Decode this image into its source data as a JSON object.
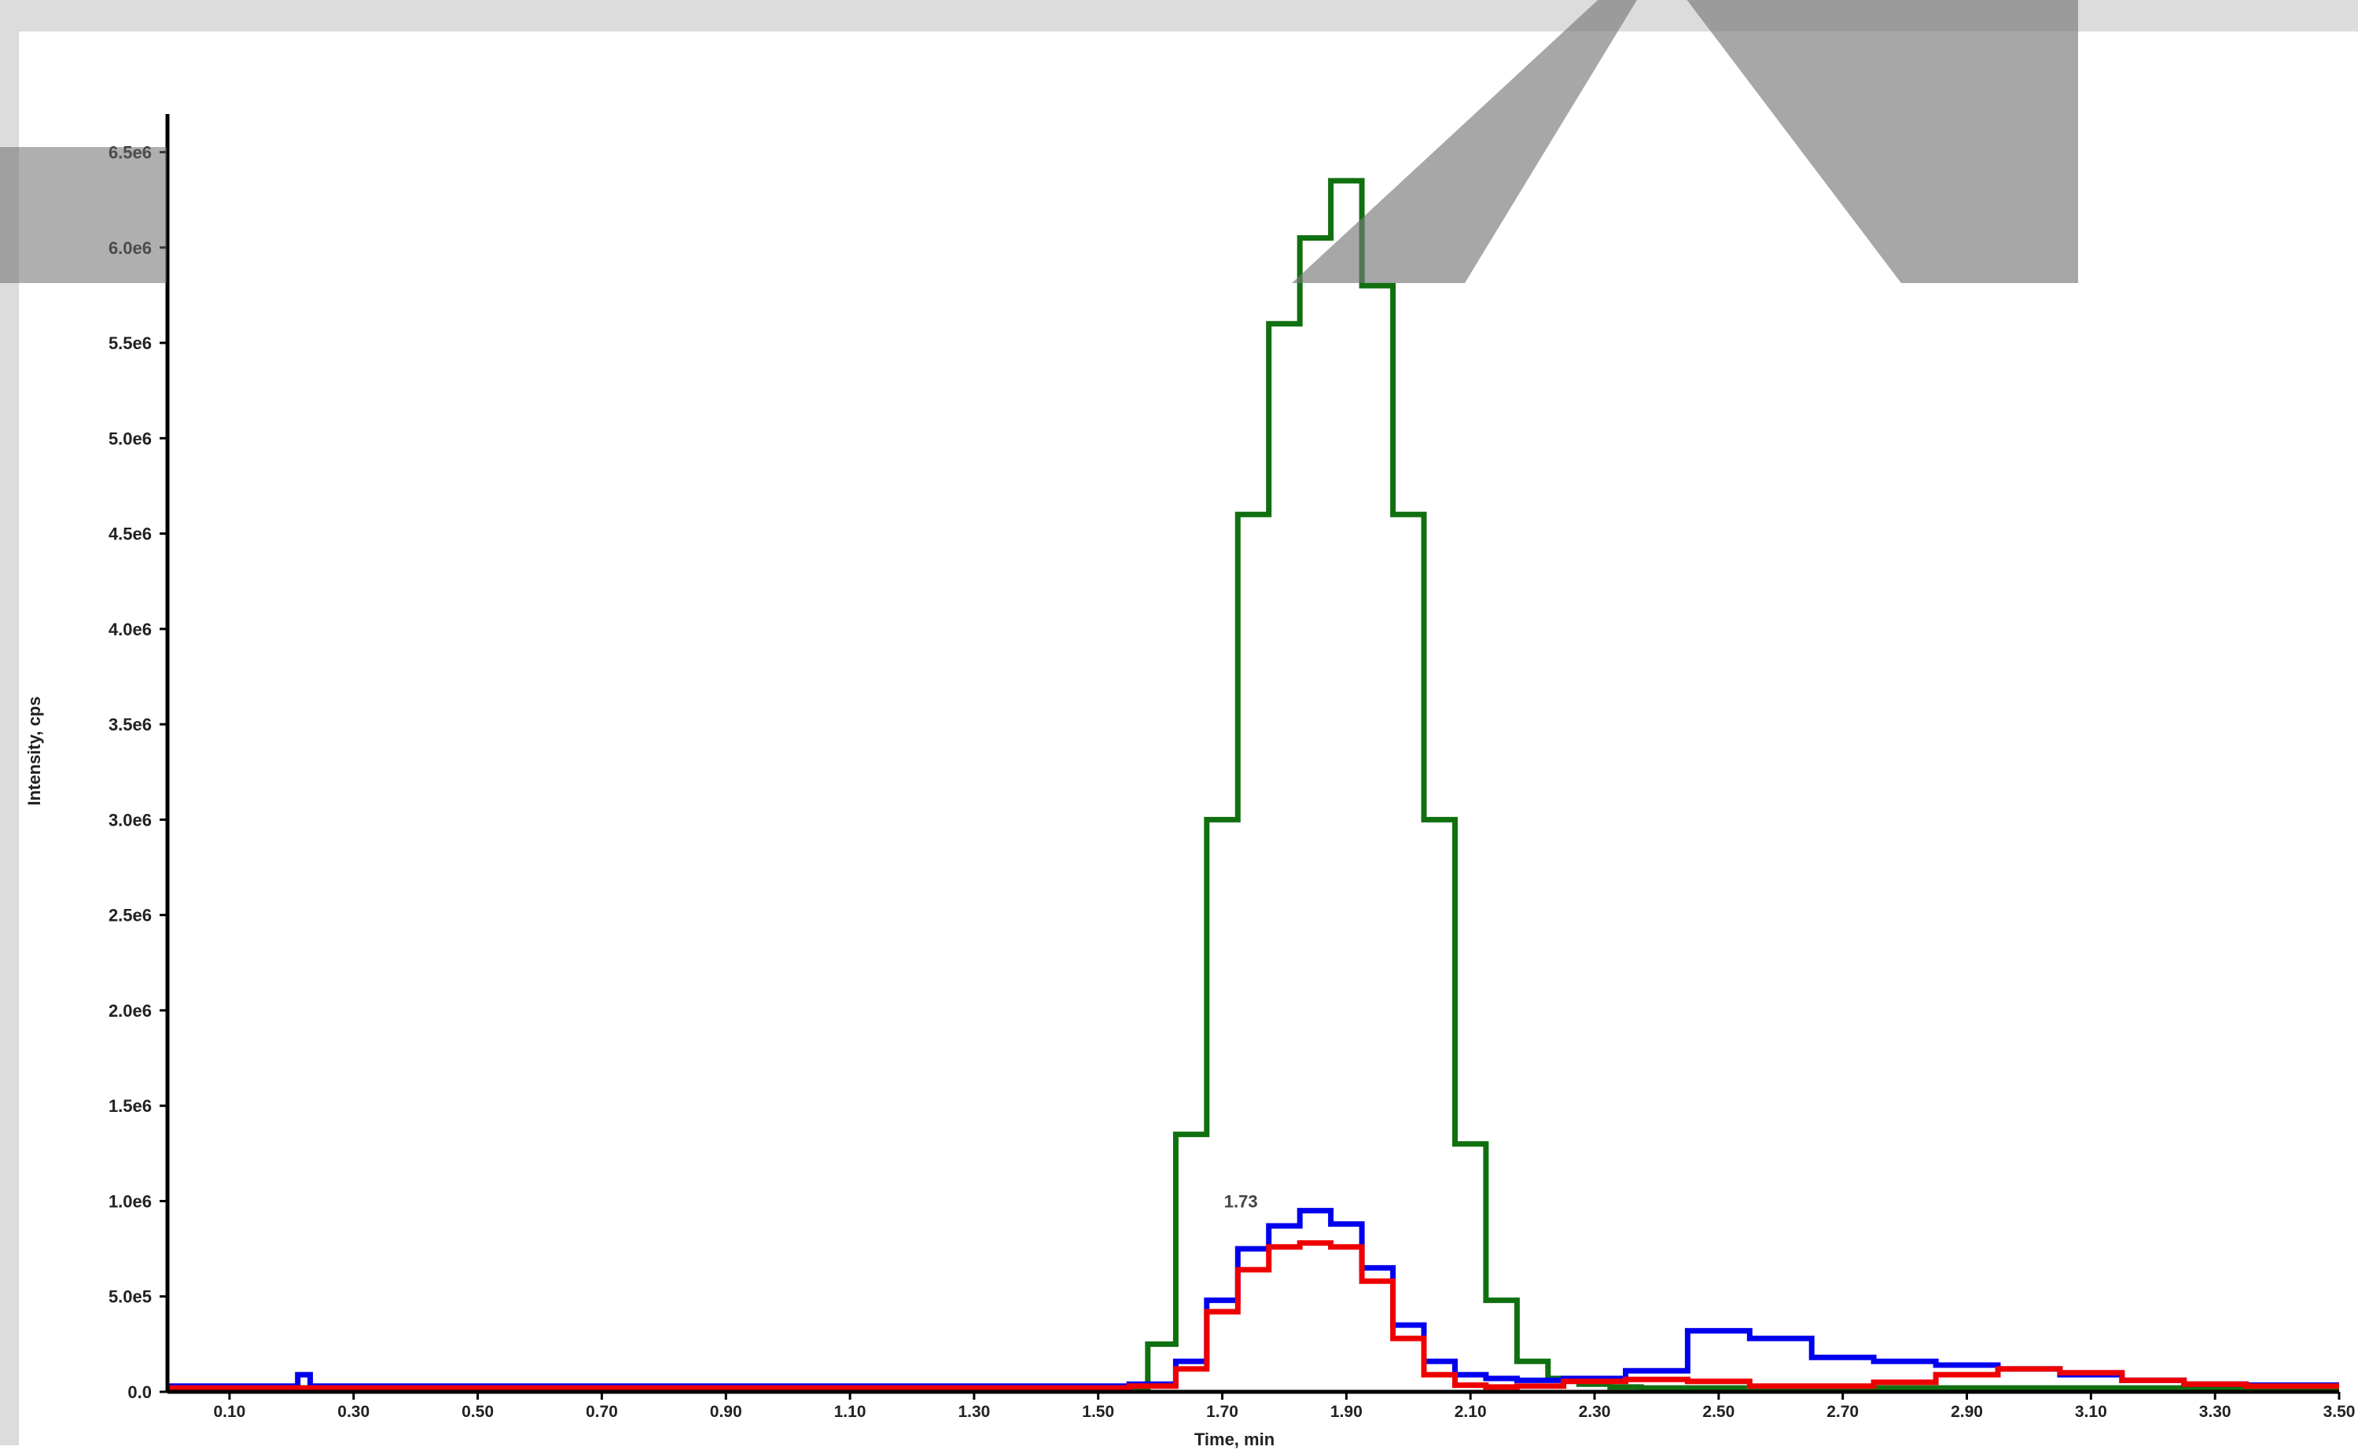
{
  "window": {
    "title_bar_text": "",
    "right_text": ""
  },
  "chart_data": {
    "type": "line",
    "title": "",
    "xlabel": "Time, min",
    "ylabel": "Intensity, cps",
    "xlim": [
      0.0,
      3.5
    ],
    "ylim": [
      0,
      6700000
    ],
    "grid": false,
    "y_ticks": [
      {
        "value": 0,
        "label": "0.0"
      },
      {
        "value": 500000,
        "label": "5.0e5"
      },
      {
        "value": 1000000,
        "label": "1.0e6"
      },
      {
        "value": 1500000,
        "label": "1.5e6"
      },
      {
        "value": 2000000,
        "label": "2.0e6"
      },
      {
        "value": 2500000,
        "label": "2.5e6"
      },
      {
        "value": 3000000,
        "label": "3.0e6"
      },
      {
        "value": 3500000,
        "label": "3.5e6"
      },
      {
        "value": 4000000,
        "label": "4.0e6"
      },
      {
        "value": 4500000,
        "label": "4.5e6"
      },
      {
        "value": 5000000,
        "label": "5.0e6"
      },
      {
        "value": 5500000,
        "label": "5.5e6"
      },
      {
        "value": 6000000,
        "label": "6.0e6"
      },
      {
        "value": 6500000,
        "label": "6.5e6"
      }
    ],
    "x_ticks": [
      {
        "value": 0.1,
        "label": "0.10"
      },
      {
        "value": 0.3,
        "label": "0.30"
      },
      {
        "value": 0.5,
        "label": "0.50"
      },
      {
        "value": 0.7,
        "label": "0.70"
      },
      {
        "value": 0.9,
        "label": "0.90"
      },
      {
        "value": 1.1,
        "label": "1.10"
      },
      {
        "value": 1.3,
        "label": "1.30"
      },
      {
        "value": 1.5,
        "label": "1.50"
      },
      {
        "value": 1.7,
        "label": "1.70"
      },
      {
        "value": 1.9,
        "label": "1.90"
      },
      {
        "value": 2.1,
        "label": "2.10"
      },
      {
        "value": 2.3,
        "label": "2.30"
      },
      {
        "value": 2.5,
        "label": "2.50"
      },
      {
        "value": 2.7,
        "label": "2.70"
      },
      {
        "value": 2.9,
        "label": "2.90"
      },
      {
        "value": 3.1,
        "label": "3.10"
      },
      {
        "value": 3.3,
        "label": "3.30"
      },
      {
        "value": 3.5,
        "label": "3.50"
      }
    ],
    "annotations": [
      {
        "x": 1.73,
        "y": 1000000,
        "text": "1.73"
      }
    ],
    "series": [
      {
        "color": "#107010",
        "x": [
          0.0,
          1.56,
          1.6,
          1.65,
          1.7,
          1.75,
          1.8,
          1.85,
          1.9,
          1.95,
          2.0,
          2.05,
          2.1,
          2.15,
          2.2,
          2.25,
          2.3,
          2.35,
          2.4,
          2.45,
          2.5,
          2.6,
          2.8,
          3.0,
          3.2,
          3.4,
          3.5
        ],
        "y": [
          20000,
          20000,
          250000,
          1350000,
          3000000,
          4600000,
          5600000,
          6050000,
          6350000,
          5800000,
          4600000,
          3000000,
          1300000,
          480000,
          160000,
          70000,
          40000,
          25000,
          20000,
          20000,
          20000,
          20000,
          20000,
          20000,
          20000,
          20000,
          20000
        ]
      },
      {
        "color": "#0000ee",
        "x": [
          0.0,
          0.2,
          0.22,
          0.24,
          0.5,
          1.0,
          1.5,
          1.6,
          1.65,
          1.7,
          1.75,
          1.8,
          1.85,
          1.9,
          1.95,
          2.0,
          2.05,
          2.1,
          2.15,
          2.2,
          2.3,
          2.4,
          2.5,
          2.6,
          2.7,
          2.8,
          2.9,
          3.0,
          3.1,
          3.2,
          3.3,
          3.4,
          3.5
        ],
        "y": [
          30000,
          30000,
          90000,
          30000,
          30000,
          30000,
          30000,
          40000,
          160000,
          480000,
          750000,
          870000,
          950000,
          880000,
          650000,
          350000,
          160000,
          90000,
          70000,
          60000,
          70000,
          110000,
          320000,
          280000,
          180000,
          160000,
          140000,
          120000,
          90000,
          60000,
          40000,
          35000,
          35000
        ]
      },
      {
        "color": "#ee0000",
        "x": [
          0.0,
          1.5,
          1.6,
          1.65,
          1.7,
          1.75,
          1.8,
          1.85,
          1.9,
          1.95,
          2.0,
          2.05,
          2.1,
          2.15,
          2.2,
          2.3,
          2.4,
          2.5,
          2.6,
          2.7,
          2.8,
          2.9,
          3.0,
          3.1,
          3.2,
          3.3,
          3.4,
          3.5
        ],
        "y": [
          20000,
          20000,
          30000,
          120000,
          420000,
          640000,
          760000,
          780000,
          760000,
          580000,
          280000,
          90000,
          35000,
          25000,
          30000,
          55000,
          65000,
          55000,
          30000,
          30000,
          50000,
          90000,
          120000,
          100000,
          60000,
          40000,
          30000,
          30000
        ]
      }
    ]
  }
}
